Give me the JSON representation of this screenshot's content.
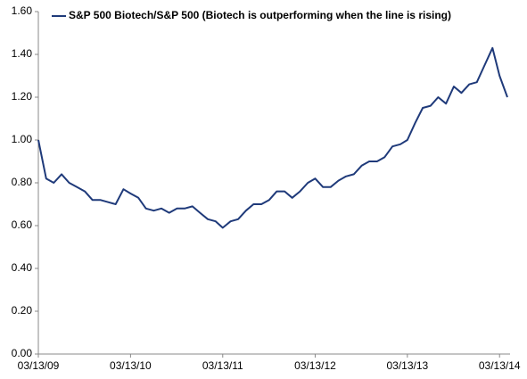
{
  "chart_data": {
    "type": "line",
    "x": [
      "03/13/09",
      "04/13/09",
      "05/13/09",
      "06/13/09",
      "07/13/09",
      "08/13/09",
      "09/13/09",
      "10/13/09",
      "11/13/09",
      "12/13/09",
      "01/13/10",
      "02/13/10",
      "03/13/10",
      "04/13/10",
      "05/13/10",
      "06/13/10",
      "07/13/10",
      "08/13/10",
      "09/13/10",
      "10/13/10",
      "11/13/10",
      "12/13/10",
      "01/13/11",
      "02/13/11",
      "03/13/11",
      "04/13/11",
      "05/13/11",
      "06/13/11",
      "07/13/11",
      "08/13/11",
      "09/13/11",
      "10/13/11",
      "11/13/11",
      "12/13/11",
      "01/13/12",
      "02/13/12",
      "03/13/12",
      "04/13/12",
      "05/13/12",
      "06/13/12",
      "07/13/12",
      "08/13/12",
      "09/13/12",
      "10/13/12",
      "11/13/12",
      "12/13/12",
      "01/13/13",
      "02/13/13",
      "03/13/13",
      "04/13/13",
      "05/13/13",
      "06/13/13",
      "07/13/13",
      "08/13/13",
      "09/13/13",
      "10/13/13",
      "11/13/13",
      "12/13/13",
      "01/13/14",
      "02/13/14",
      "03/13/14",
      "04/13/14"
    ],
    "series": [
      {
        "name": "S&P 500 Biotech/S&P 500 (Biotech is outperforming when the line is rising)",
        "color": "#1f3a7a",
        "values": [
          1.0,
          0.82,
          0.8,
          0.84,
          0.8,
          0.78,
          0.76,
          0.72,
          0.72,
          0.71,
          0.7,
          0.77,
          0.75,
          0.73,
          0.68,
          0.67,
          0.68,
          0.66,
          0.68,
          0.68,
          0.69,
          0.66,
          0.63,
          0.62,
          0.59,
          0.62,
          0.63,
          0.67,
          0.7,
          0.7,
          0.72,
          0.76,
          0.76,
          0.73,
          0.76,
          0.8,
          0.82,
          0.78,
          0.78,
          0.81,
          0.83,
          0.84,
          0.88,
          0.9,
          0.9,
          0.92,
          0.97,
          0.98,
          1.0,
          1.08,
          1.15,
          1.16,
          1.2,
          1.17,
          1.25,
          1.22,
          1.26,
          1.27,
          1.35,
          1.43,
          1.3,
          1.2
        ]
      }
    ],
    "xlim": [
      "03/13/09",
      "04/13/14"
    ],
    "xticks": [
      "03/13/09",
      "03/13/10",
      "03/13/11",
      "03/13/12",
      "03/13/13",
      "03/13/14"
    ],
    "ylim": [
      0,
      1.6
    ],
    "yticks": [
      {
        "value": 0,
        "label": "0.00"
      },
      {
        "value": 0.2,
        "label": "0.20"
      },
      {
        "value": 0.4,
        "label": "0.40"
      },
      {
        "value": 0.6,
        "label": "0.60"
      },
      {
        "value": 0.8,
        "label": "0.80"
      },
      {
        "value": 1.0,
        "label": "1.00"
      },
      {
        "value": 1.2,
        "label": "1.20"
      },
      {
        "value": 1.4,
        "label": "1.40"
      },
      {
        "value": 1.6,
        "label": "1.60"
      }
    ],
    "grid": false
  }
}
